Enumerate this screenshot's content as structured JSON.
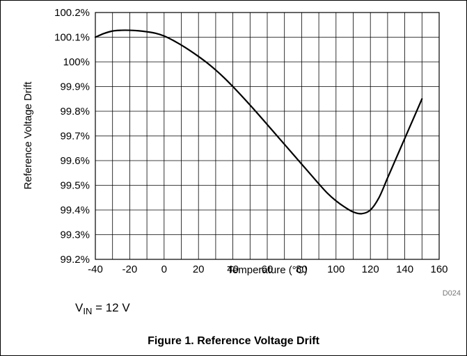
{
  "chart_data": {
    "type": "line",
    "title": "",
    "xlabel": "Temperature (°C)",
    "ylabel": "Reference Voltage Drift",
    "xlim": [
      -40,
      160
    ],
    "ylim": [
      99.2,
      100.2
    ],
    "x_ticks": [
      -40,
      -20,
      0,
      20,
      40,
      60,
      80,
      100,
      120,
      140,
      160
    ],
    "x_tick_labels": [
      "-40",
      "-20",
      "0",
      "20",
      "40",
      "60",
      "80",
      "100",
      "120",
      "140",
      "160"
    ],
    "y_ticks": [
      99.2,
      99.3,
      99.4,
      99.5,
      99.6,
      99.7,
      99.8,
      99.9,
      100.0,
      100.1,
      100.2
    ],
    "y_tick_labels": [
      "99.2%",
      "99.3%",
      "99.4%",
      "99.5%",
      "99.6%",
      "99.7%",
      "99.8%",
      "99.9%",
      "100%",
      "100.1%",
      "100.2%"
    ],
    "grid": true,
    "series": [
      {
        "x": [
          -40,
          -35,
          -30,
          -25,
          -20,
          -15,
          -10,
          -5,
          0,
          5,
          10,
          15,
          20,
          25,
          30,
          35,
          40,
          45,
          50,
          55,
          60,
          65,
          70,
          75,
          80,
          85,
          90,
          95,
          100,
          105,
          110,
          115,
          120,
          125,
          130,
          135,
          140,
          145,
          150
        ],
        "y": [
          100.1,
          100.115,
          100.125,
          100.128,
          100.128,
          100.126,
          100.122,
          100.116,
          100.105,
          100.088,
          100.068,
          100.046,
          100.022,
          99.996,
          99.967,
          99.935,
          99.9,
          99.863,
          99.825,
          99.786,
          99.746,
          99.706,
          99.666,
          99.626,
          99.586,
          99.546,
          99.506,
          99.468,
          99.437,
          99.412,
          99.392,
          99.385,
          99.4,
          99.45,
          99.53,
          99.61,
          99.69,
          99.77,
          99.85
        ],
        "color": "#000000"
      }
    ]
  },
  "annotation": {
    "base": "V",
    "subscript": "IN",
    "rest": " = 12 V"
  },
  "figure_code": "D024",
  "caption": "Figure 1. Reference Voltage Drift"
}
